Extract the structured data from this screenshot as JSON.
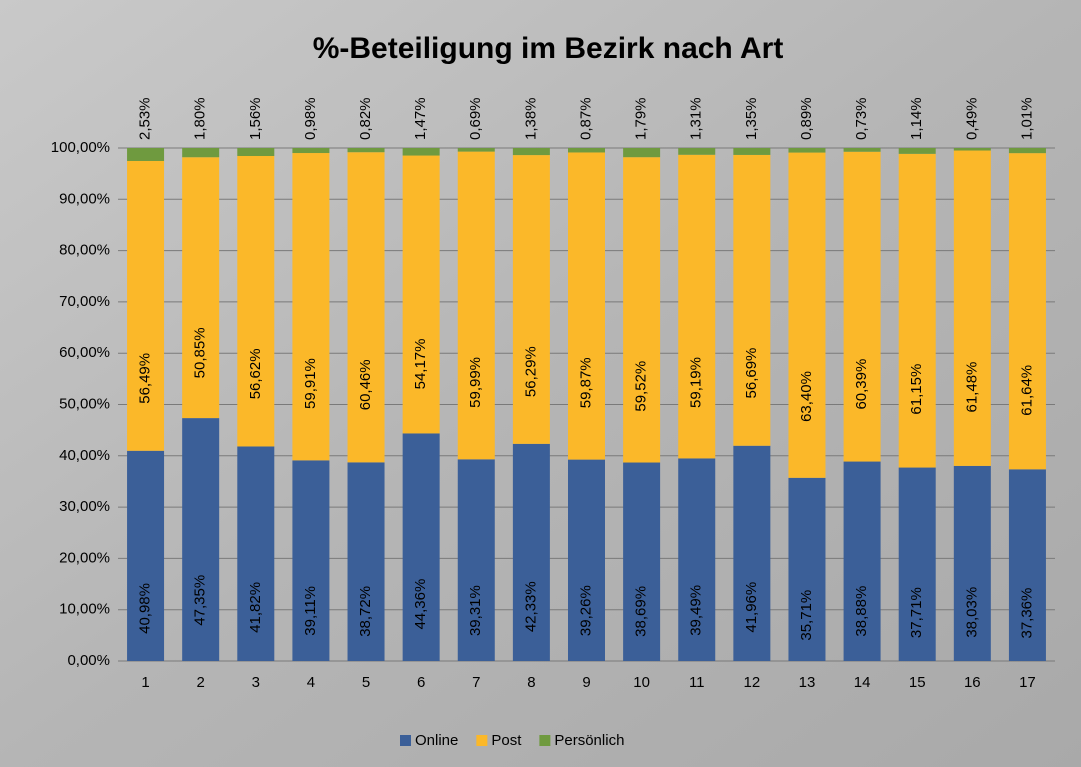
{
  "chart_data": {
    "type": "stacked_bar",
    "title": "%-Beteiligung im Bezirk nach Art",
    "categories": [
      "1",
      "2",
      "3",
      "4",
      "5",
      "6",
      "7",
      "8",
      "9",
      "10",
      "11",
      "12",
      "13",
      "14",
      "15",
      "16",
      "17"
    ],
    "series": [
      {
        "name": "Online",
        "color": "#3b5f98",
        "values": [
          40.98,
          47.35,
          41.82,
          39.11,
          38.72,
          44.36,
          39.31,
          42.33,
          39.26,
          38.69,
          39.49,
          41.96,
          35.71,
          38.88,
          37.71,
          38.03,
          37.36
        ],
        "value_labels": [
          "40,98%",
          "47,35%",
          "41,82%",
          "39,11%",
          "38,72%",
          "44,36%",
          "39,31%",
          "42,33%",
          "39,26%",
          "38,69%",
          "39,49%",
          "41,96%",
          "35,71%",
          "38,88%",
          "37,71%",
          "38,03%",
          "37,36%"
        ]
      },
      {
        "name": "Post",
        "color": "#fbb829",
        "values": [
          56.49,
          50.85,
          56.62,
          59.91,
          60.46,
          54.17,
          59.99,
          56.29,
          59.87,
          59.52,
          59.19,
          56.69,
          63.4,
          60.39,
          61.15,
          61.48,
          61.64
        ],
        "value_labels": [
          "56,49%",
          "50,85%",
          "56,62%",
          "59,91%",
          "60,46%",
          "54,17%",
          "59,99%",
          "56,29%",
          "59,87%",
          "59,52%",
          "59,19%",
          "56,69%",
          "63,40%",
          "60,39%",
          "61,15%",
          "61,48%",
          "61,64%"
        ]
      },
      {
        "name": "Persönlich",
        "color": "#6f9a3f",
        "values": [
          2.53,
          1.8,
          1.56,
          0.98,
          0.82,
          1.47,
          0.69,
          1.38,
          0.87,
          1.79,
          1.31,
          1.35,
          0.89,
          0.73,
          1.14,
          0.49,
          1.01
        ],
        "value_labels": [
          "2,53%",
          "1,80%",
          "1,56%",
          "0,98%",
          "0,82%",
          "1,47%",
          "0,69%",
          "1,38%",
          "0,87%",
          "1,79%",
          "1,31%",
          "1,35%",
          "0,89%",
          "0,73%",
          "1,14%",
          "0,49%",
          "1,01%"
        ]
      }
    ],
    "ylim": [
      0,
      100
    ],
    "yticks": [
      {
        "value": 0,
        "label": "0,00%"
      },
      {
        "value": 10,
        "label": "10,00%"
      },
      {
        "value": 20,
        "label": "20,00%"
      },
      {
        "value": 30,
        "label": "30,00%"
      },
      {
        "value": 40,
        "label": "40,00%"
      },
      {
        "value": 50,
        "label": "50,00%"
      },
      {
        "value": 60,
        "label": "60,00%"
      },
      {
        "value": 70,
        "label": "70,00%"
      },
      {
        "value": 80,
        "label": "80,00%"
      },
      {
        "value": 90,
        "label": "90,00%"
      },
      {
        "value": 100,
        "label": "100,00%"
      }
    ],
    "grid": true,
    "legend": "bottom"
  }
}
